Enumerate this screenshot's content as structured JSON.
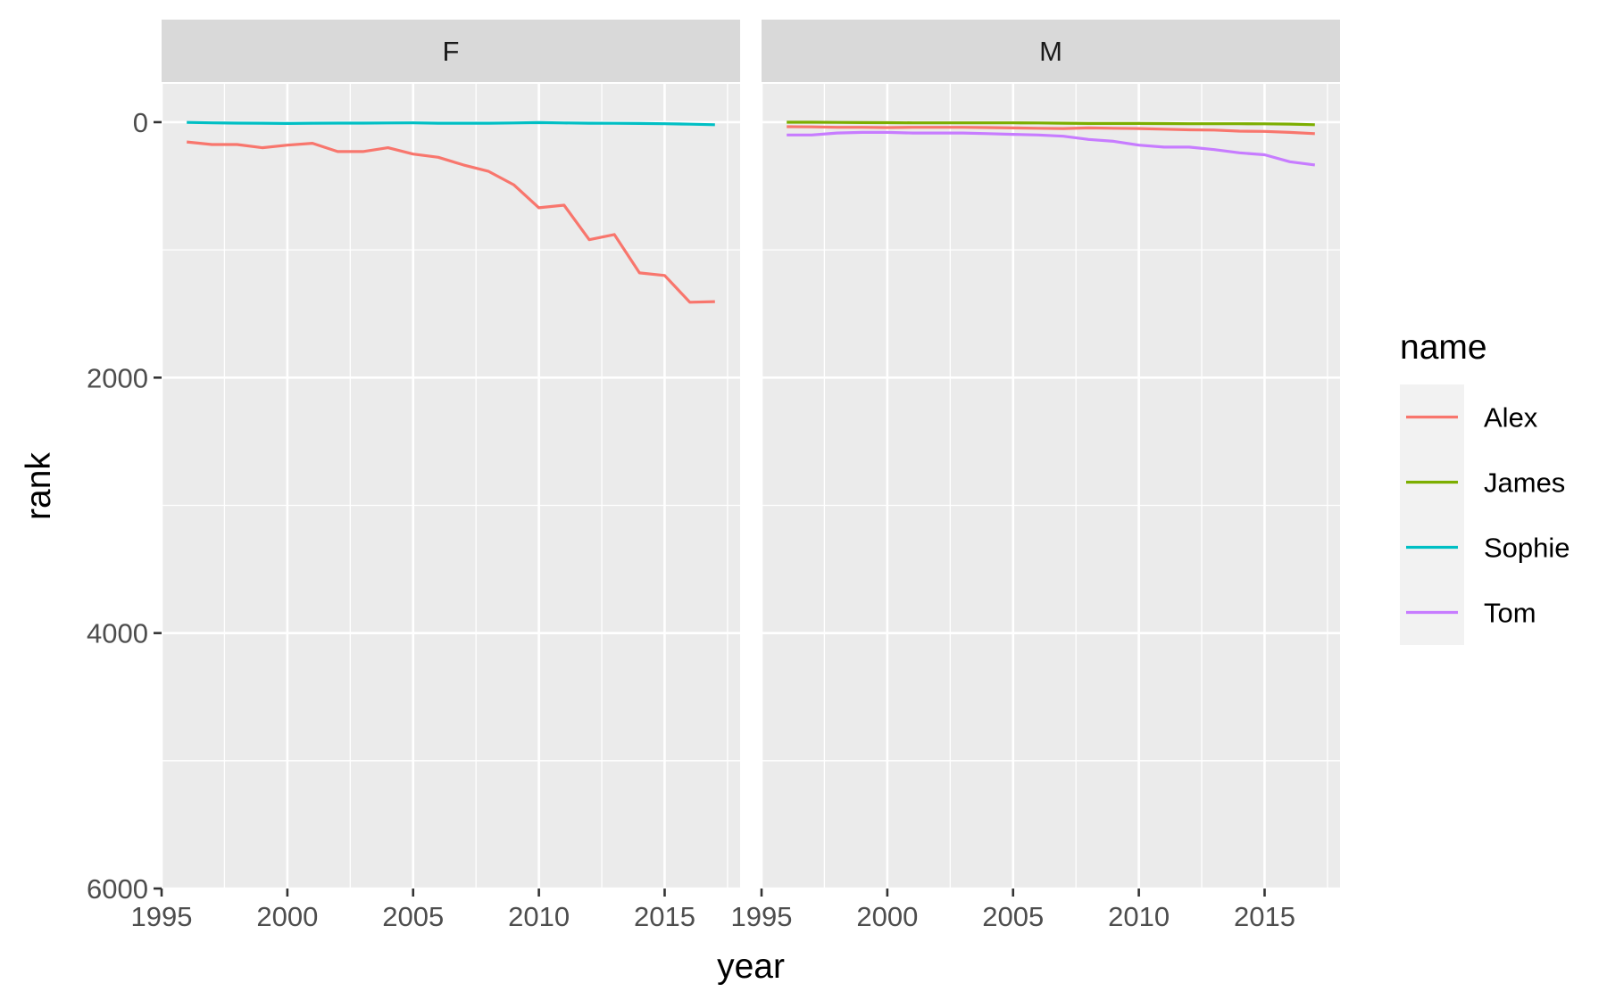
{
  "chart_data": {
    "type": "line",
    "xlabel": "year",
    "ylabel": "rank",
    "xlim": [
      1995,
      2018
    ],
    "ylim": [
      6000,
      -300
    ],
    "y_reversed": true,
    "x_ticks": [
      1995,
      2000,
      2005,
      2010,
      2015
    ],
    "y_ticks": [
      0,
      2000,
      4000,
      6000
    ],
    "grid": true,
    "legend": {
      "title": "name",
      "position": "right",
      "entries": [
        {
          "name": "Alex",
          "color": "#F8766D"
        },
        {
          "name": "James",
          "color": "#7CAE00"
        },
        {
          "name": "Sophie",
          "color": "#00BFC4"
        },
        {
          "name": "Tom",
          "color": "#C77CFF"
        }
      ]
    },
    "facets": [
      {
        "label": "F",
        "series": [
          {
            "name": "Alex",
            "x": [
              1996,
              1997,
              1998,
              1999,
              2000,
              2001,
              2002,
              2003,
              2004,
              2005,
              2006,
              2007,
              2008,
              2009,
              2010,
              2011,
              2012,
              2013,
              2014,
              2015,
              2016,
              2017
            ],
            "y": [
              155,
              175,
              175,
              200,
              180,
              165,
              230,
              230,
              200,
              250,
              275,
              335,
              385,
              490,
              670,
              650,
              920,
              880,
              1180,
              1200,
              1410,
              1405
            ]
          },
          {
            "name": "Sophie",
            "x": [
              1996,
              1997,
              1998,
              1999,
              2000,
              2001,
              2002,
              2003,
              2004,
              2005,
              2006,
              2007,
              2008,
              2009,
              2010,
              2011,
              2012,
              2013,
              2014,
              2015,
              2016,
              2017
            ],
            "y": [
              2,
              5,
              7,
              8,
              10,
              8,
              7,
              7,
              6,
              5,
              8,
              8,
              8,
              6,
              3,
              6,
              8,
              9,
              10,
              12,
              16,
              20
            ]
          }
        ]
      },
      {
        "label": "M",
        "series": [
          {
            "name": "Alex",
            "x": [
              1996,
              1997,
              1998,
              1999,
              2000,
              2001,
              2002,
              2003,
              2004,
              2005,
              2006,
              2007,
              2008,
              2009,
              2010,
              2011,
              2012,
              2013,
              2014,
              2015,
              2016,
              2017
            ],
            "y": [
              35,
              37,
              40,
              40,
              42,
              40,
              40,
              40,
              42,
              45,
              48,
              50,
              45,
              48,
              50,
              55,
              60,
              62,
              70,
              72,
              80,
              90
            ]
          },
          {
            "name": "James",
            "x": [
              1996,
              1997,
              1998,
              1999,
              2000,
              2001,
              2002,
              2003,
              2004,
              2005,
              2006,
              2007,
              2008,
              2009,
              2010,
              2011,
              2012,
              2013,
              2014,
              2015,
              2016,
              2017
            ],
            "y": [
              0,
              0,
              2,
              3,
              4,
              5,
              5,
              5,
              5,
              5,
              6,
              8,
              10,
              10,
              10,
              11,
              12,
              12,
              12,
              13,
              15,
              20
            ]
          },
          {
            "name": "Tom",
            "x": [
              1996,
              1997,
              1998,
              1999,
              2000,
              2001,
              2002,
              2003,
              2004,
              2005,
              2006,
              2007,
              2008,
              2009,
              2010,
              2011,
              2012,
              2013,
              2014,
              2015,
              2016,
              2017
            ],
            "y": [
              100,
              100,
              85,
              80,
              80,
              85,
              85,
              85,
              90,
              95,
              100,
              110,
              135,
              150,
              180,
              195,
              195,
              215,
              240,
              255,
              310,
              335
            ]
          }
        ]
      }
    ]
  }
}
